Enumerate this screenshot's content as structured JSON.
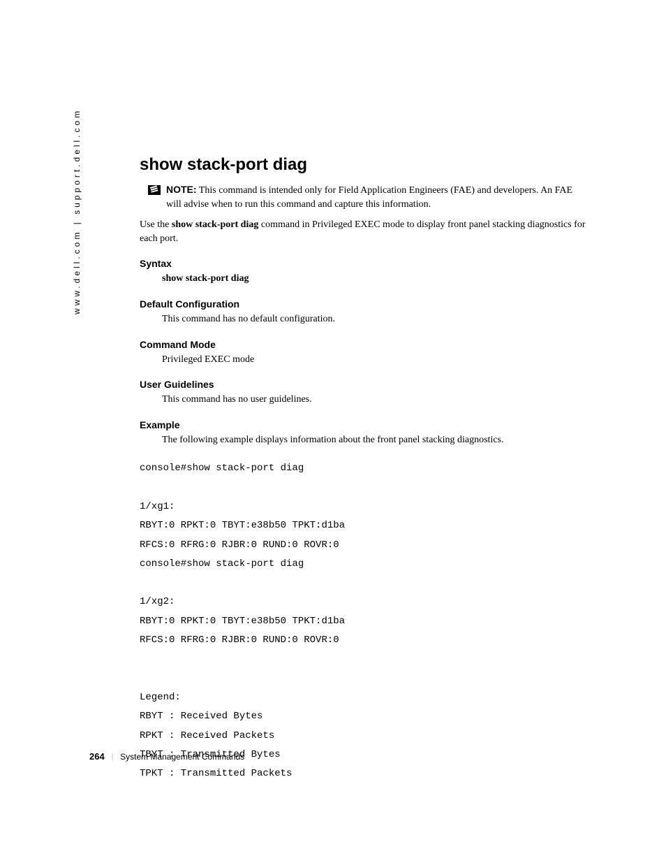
{
  "sidebar": {
    "url": "www.dell.com | support.dell.com"
  },
  "page": {
    "title": "show stack-port diag",
    "note": {
      "label": "NOTE:",
      "text": " This command is intended only for Field Application Engineers (FAE) and developers. An FAE will advise when to run this command and capture this information."
    },
    "description_prefix": "Use the ",
    "description_bold": "show stack-port diag",
    "description_suffix": " command in Privileged EXEC mode to display front panel stacking diagnostics for each port."
  },
  "sections": {
    "syntax": {
      "header": "Syntax",
      "body": "show stack-port diag"
    },
    "default_config": {
      "header": "Default Configuration",
      "body": "This command has no default configuration."
    },
    "command_mode": {
      "header": "Command Mode",
      "body": "Privileged EXEC mode"
    },
    "user_guidelines": {
      "header": "User Guidelines",
      "body": "This command has no user guidelines."
    },
    "example": {
      "header": "Example",
      "body": "The following example displays information about the front panel stacking diagnostics."
    }
  },
  "code": "console#show stack-port diag\n\n1/xg1:\nRBYT:0 RPKT:0 TBYT:e38b50 TPKT:d1ba\nRFCS:0 RFRG:0 RJBR:0 RUND:0 ROVR:0\nconsole#show stack-port diag\n\n1/xg2:\nRBYT:0 RPKT:0 TBYT:e38b50 TPKT:d1ba\nRFCS:0 RFRG:0 RJBR:0 RUND:0 ROVR:0\n\n\nLegend:\nRBYT : Received Bytes\nRPKT : Received Packets\nTBYT : Transmitted Bytes\nTPKT : Transmitted Packets",
  "footer": {
    "page_number": "264",
    "section_title": "System Management Commands"
  }
}
